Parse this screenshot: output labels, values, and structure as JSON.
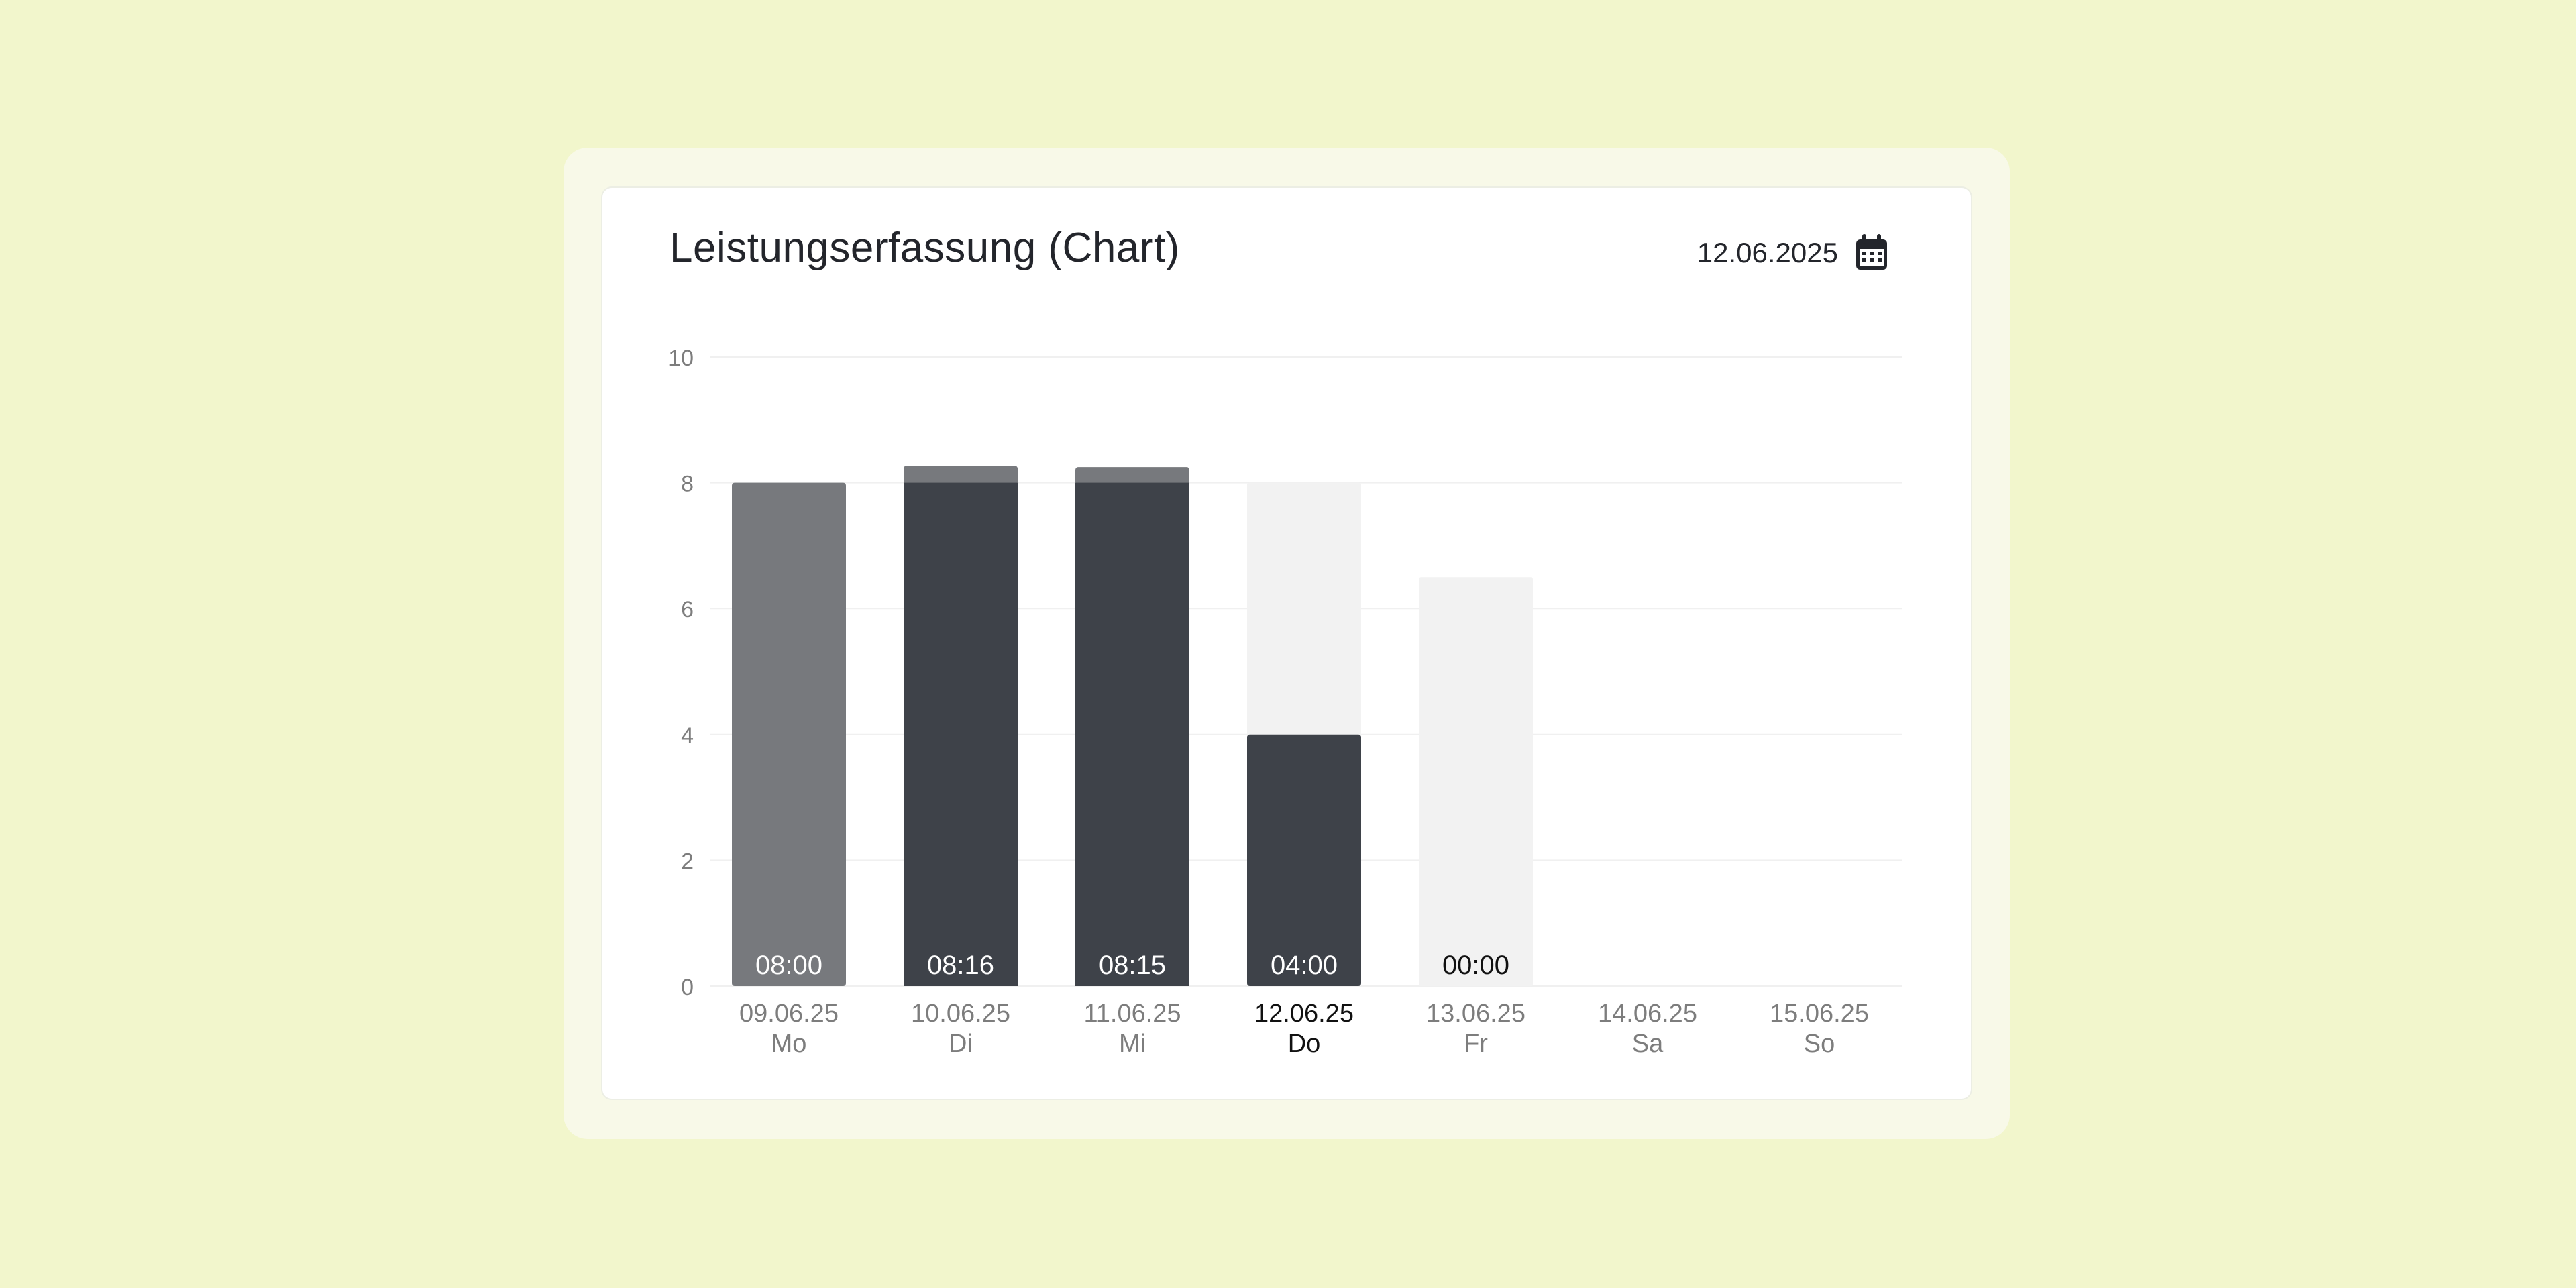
{
  "card": {
    "title": "Leistungserfassung (Chart)",
    "date": "12.06.2025",
    "calendar_icon": "calendar-icon"
  },
  "colors": {
    "background": "#f2f6cc",
    "bar_logged_dark": "#3e4249",
    "bar_logged_light": "#77797d",
    "bar_target_empty": "#f2f2f2",
    "label_active": "#111111",
    "label_muted": "#7d7d7d"
  },
  "chart_data": {
    "type": "bar",
    "title": "",
    "ylim": [
      0,
      10
    ],
    "yticks": [
      "0",
      "2",
      "4",
      "6",
      "8",
      "10"
    ],
    "grid": true,
    "categories": [
      {
        "date": "09.06.25",
        "day": "Mo",
        "active": false
      },
      {
        "date": "10.06.25",
        "day": "Di",
        "active": false
      },
      {
        "date": "11.06.25",
        "day": "Mi",
        "active": false
      },
      {
        "date": "12.06.25",
        "day": "Do",
        "active": true
      },
      {
        "date": "13.06.25",
        "day": "Fr",
        "active": false
      },
      {
        "date": "14.06.25",
        "day": "Sa",
        "active": false
      },
      {
        "date": "15.06.25",
        "day": "So",
        "active": false
      }
    ],
    "target_hours": [
      8,
      8,
      8,
      8,
      6.5,
      0,
      0
    ],
    "logged_hours": [
      8,
      8.27,
      8.25,
      4,
      0,
      0,
      0
    ],
    "bar_labels": [
      "08:00",
      "08:16",
      "08:15",
      "04:00",
      "00:00",
      "",
      ""
    ]
  }
}
